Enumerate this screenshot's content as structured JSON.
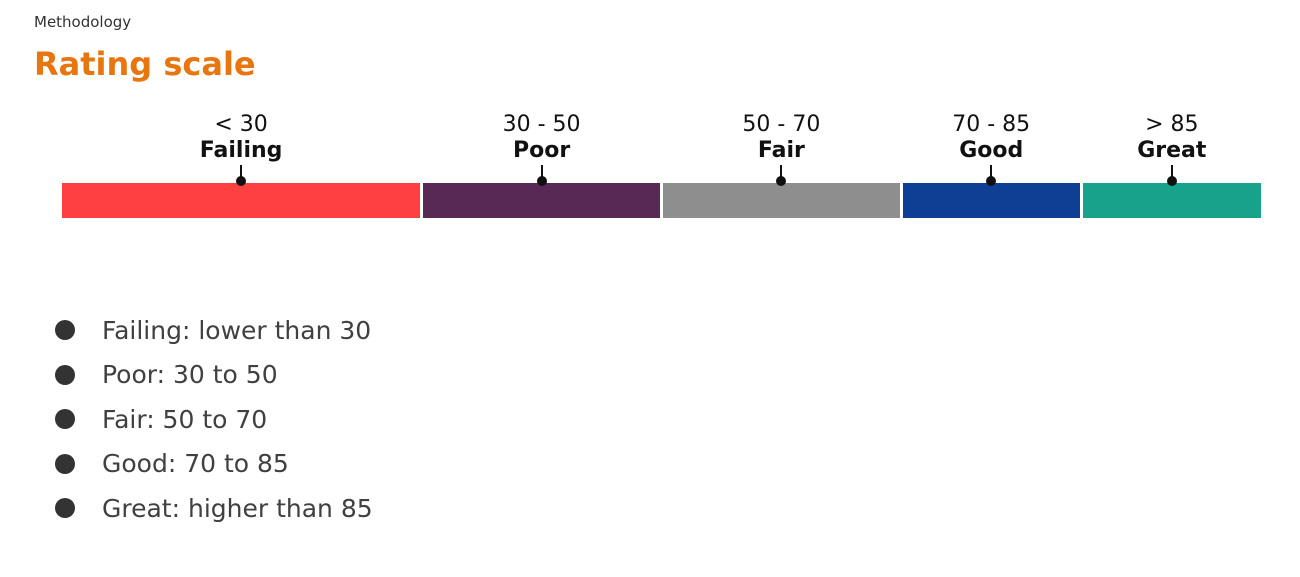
{
  "header": {
    "eyebrow": "Methodology",
    "title": "Rating scale"
  },
  "scale": {
    "segments": [
      {
        "range": "< 30",
        "name": "Failing",
        "color": "#ff4040",
        "from": 0,
        "to": 30
      },
      {
        "range": "30 - 50",
        "name": "Poor",
        "color": "#572954",
        "from": 30,
        "to": 50
      },
      {
        "range": "50 - 70",
        "name": "Fair",
        "color": "#8e8e8e",
        "from": 50,
        "to": 70
      },
      {
        "range": "70 - 85",
        "name": "Good",
        "color": "#0f3f94",
        "from": 70,
        "to": 85
      },
      {
        "range": "> 85",
        "name": "Great",
        "color": "#17a38b",
        "from": 85,
        "to": 100
      }
    ]
  },
  "legend": {
    "items": [
      "Failing: lower than 30",
      "Poor: 30 to 50",
      "Fair: 50 to 70",
      "Good: 70 to 85",
      "Great: higher than 85"
    ]
  },
  "colors": {
    "title": "#e8750e",
    "bullet": "#333333"
  }
}
